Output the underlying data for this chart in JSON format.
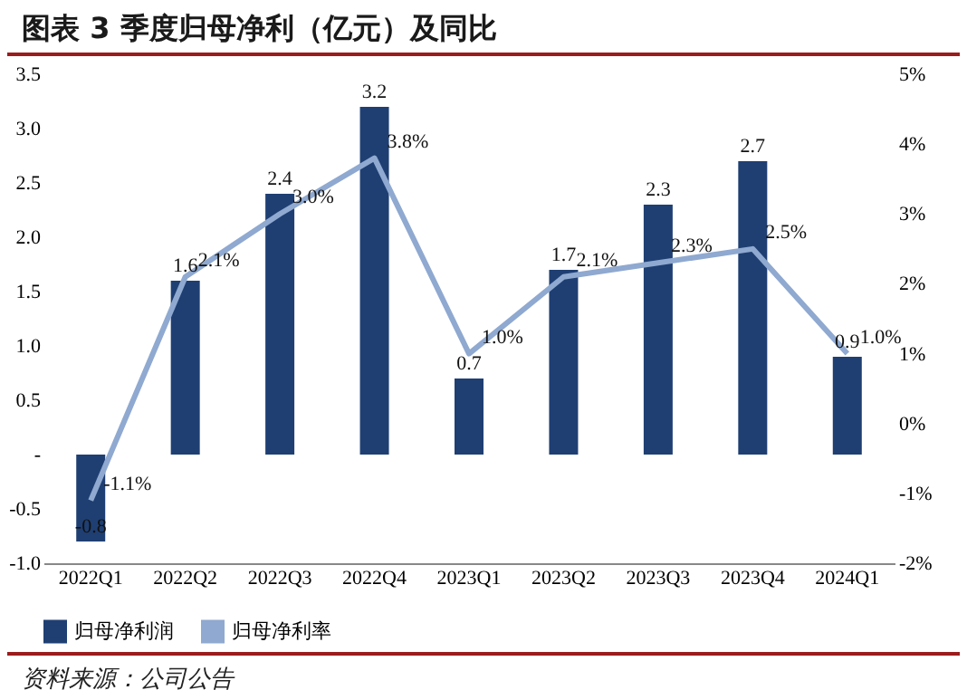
{
  "chart_data": {
    "type": "bar",
    "title": "图表 3   季度归母净利（亿元）及同比",
    "categories": [
      "2022Q1",
      "2022Q2",
      "2022Q3",
      "2022Q4",
      "2023Q1",
      "2023Q2",
      "2023Q3",
      "2023Q4",
      "2024Q1"
    ],
    "series": [
      {
        "name": "归母净利润",
        "color": "#1f3f73",
        "values": [
          -0.8,
          1.6,
          2.4,
          3.2,
          0.7,
          1.7,
          2.3,
          2.7,
          0.9
        ],
        "value_labels": [
          "-0.8",
          "1.6",
          "2.4",
          "3.2",
          "0.7",
          "1.7",
          "2.3",
          "2.7",
          "0.9"
        ]
      },
      {
        "name": "归母净利率",
        "type": "line",
        "axis": "y2",
        "color": "#8fa9d0",
        "values": [
          -1.1,
          2.1,
          3.0,
          3.8,
          1.0,
          2.1,
          2.3,
          2.5,
          1.0
        ],
        "value_labels": [
          "-1.1%",
          "2.1%",
          "3.0%",
          "3.8%",
          "1.0%",
          "2.1%",
          "2.3%",
          "2.5%",
          "1.0%"
        ]
      }
    ],
    "ylim": [
      -1,
      3.5
    ],
    "yticks": [
      {
        "value": -1,
        "label": "-1.0"
      },
      {
        "value": -0.5,
        "label": "-0.5"
      },
      {
        "value": 0,
        "label": "-"
      },
      {
        "value": 0.5,
        "label": "0.5"
      },
      {
        "value": 1,
        "label": "1.0"
      },
      {
        "value": 1.5,
        "label": "1.5"
      },
      {
        "value": 2,
        "label": "2.0"
      },
      {
        "value": 2.5,
        "label": "2.5"
      },
      {
        "value": 3,
        "label": "3.0"
      },
      {
        "value": 3.5,
        "label": "3.5"
      }
    ],
    "y2lim": [
      -2,
      5
    ],
    "y2ticks": [
      {
        "value": -2,
        "label": "-2%"
      },
      {
        "value": -1,
        "label": "-1%"
      },
      {
        "value": 0,
        "label": "0%"
      },
      {
        "value": 1,
        "label": "1%"
      },
      {
        "value": 2,
        "label": "2%"
      },
      {
        "value": 3,
        "label": "3%"
      },
      {
        "value": 4,
        "label": "4%"
      },
      {
        "value": 5,
        "label": "5%"
      }
    ],
    "legend": "bottom",
    "annotations": [
      "资料来源：公司公告"
    ]
  }
}
